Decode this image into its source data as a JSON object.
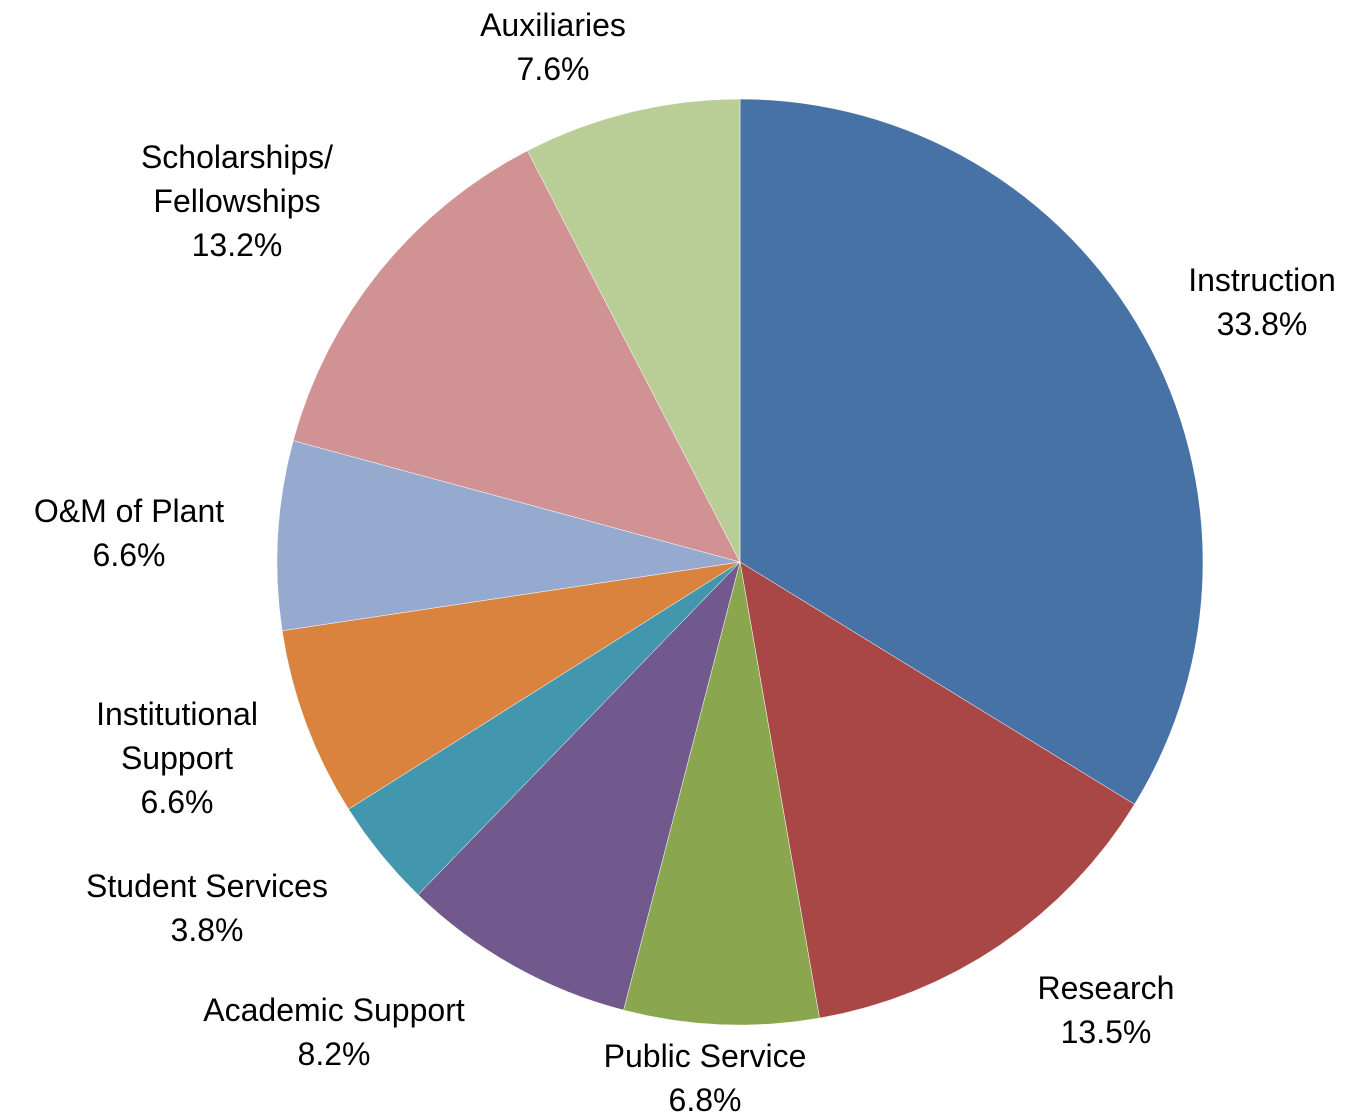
{
  "chart_data": {
    "type": "pie",
    "title": "",
    "start": "top, clockwise",
    "slices": [
      {
        "label": "Instruction",
        "value": 33.8,
        "value_label": "33.8%",
        "color": "#4672A6"
      },
      {
        "label": "Research",
        "value": 13.5,
        "value_label": "13.5%",
        "color": "#A94746"
      },
      {
        "label": "Public Service",
        "value": 6.8,
        "value_label": "6.8%",
        "color": "#8AA64E"
      },
      {
        "label": "Academic Support",
        "value": 8.2,
        "value_label": "8.2%",
        "color": "#71598E"
      },
      {
        "label": "Student Services",
        "value": 3.8,
        "value_label": "3.8%",
        "color": "#4297AE"
      },
      {
        "label": "Institutional Support",
        "value": 6.6,
        "value_label": "6.6%",
        "color": "#DA833E"
      },
      {
        "label": "O&M of Plant",
        "value": 6.6,
        "value_label": "6.6%",
        "color": "#96AACF"
      },
      {
        "label": "Scholarships/ Fellowships",
        "value": 13.2,
        "value_label": "13.2%",
        "color": "#D09292"
      },
      {
        "label": "Auxiliaries",
        "value": 7.6,
        "value_label": "7.6%",
        "color": "#B9CD96"
      }
    ]
  }
}
